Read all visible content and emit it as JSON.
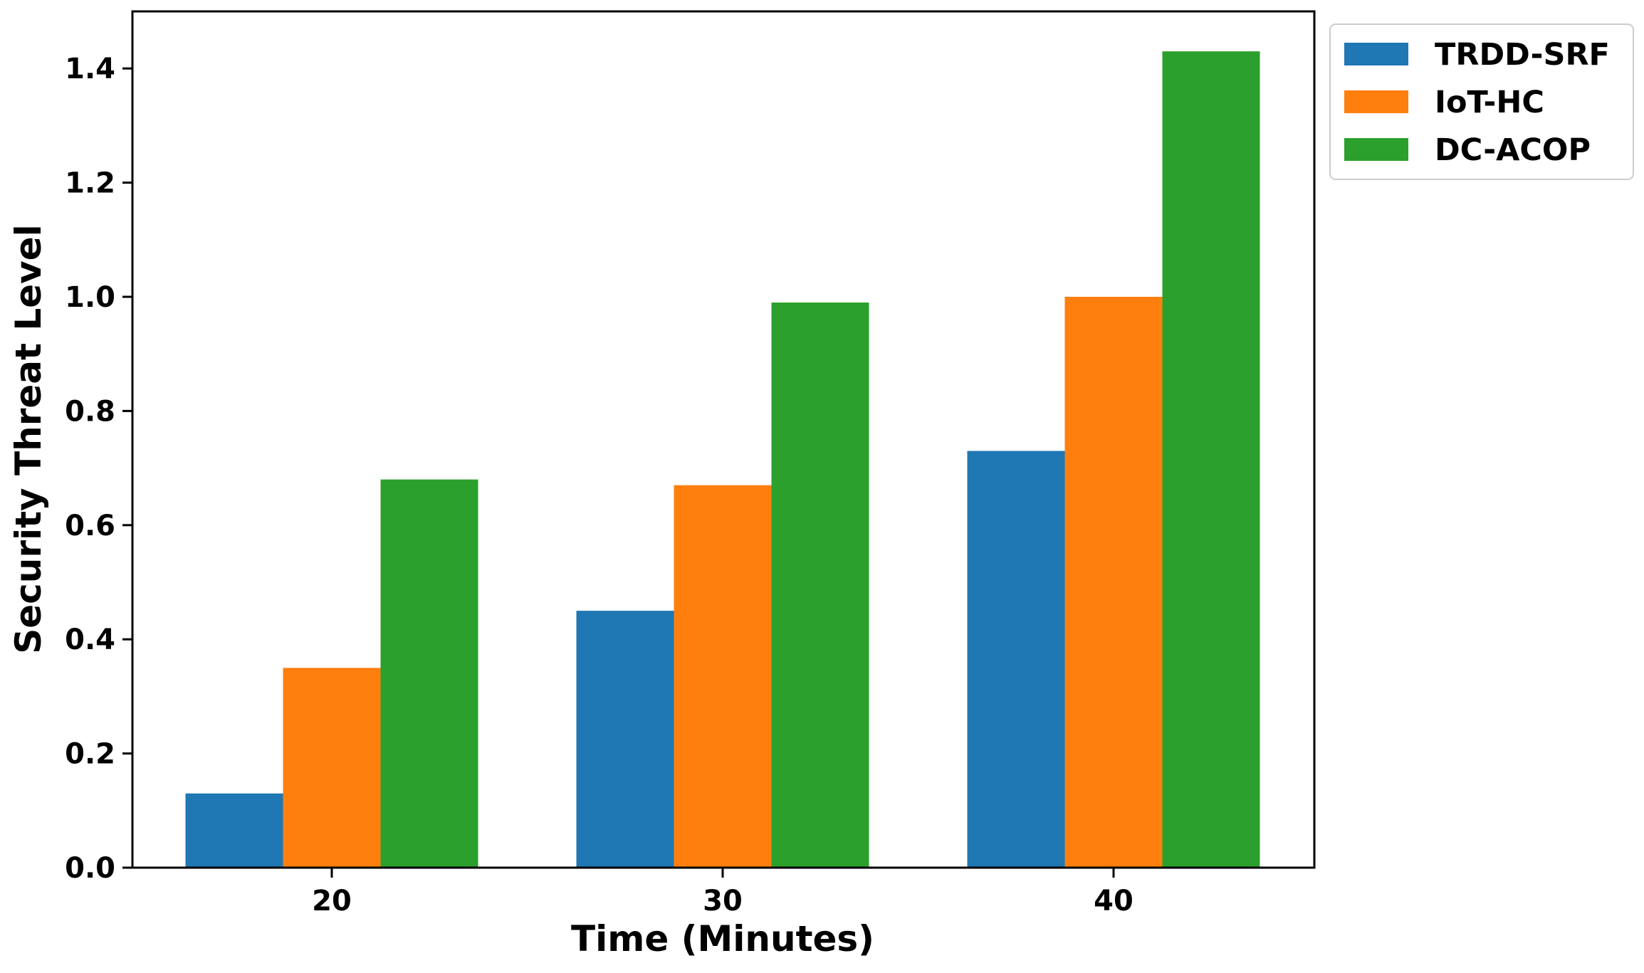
{
  "chart_data": {
    "type": "bar",
    "title": "",
    "xlabel": "Time (Minutes)",
    "ylabel": "Security Threat Level",
    "categories": [
      "20",
      "30",
      "40"
    ],
    "series": [
      {
        "name": "TRDD-SRF",
        "color": "#1f77b4",
        "values": [
          0.13,
          0.45,
          0.73
        ]
      },
      {
        "name": "IoT-HC",
        "color": "#ff7f0e",
        "values": [
          0.35,
          0.67,
          1.0
        ]
      },
      {
        "name": "DC-ACOP",
        "color": "#2ca02c",
        "values": [
          0.68,
          0.99,
          1.43
        ]
      }
    ],
    "ylim": [
      0,
      1.5
    ],
    "yticks": [
      "0.0",
      "0.2",
      "0.4",
      "0.6",
      "0.8",
      "1.0",
      "1.2",
      "1.4"
    ],
    "grid": false,
    "legend": "outside-top-right"
  }
}
